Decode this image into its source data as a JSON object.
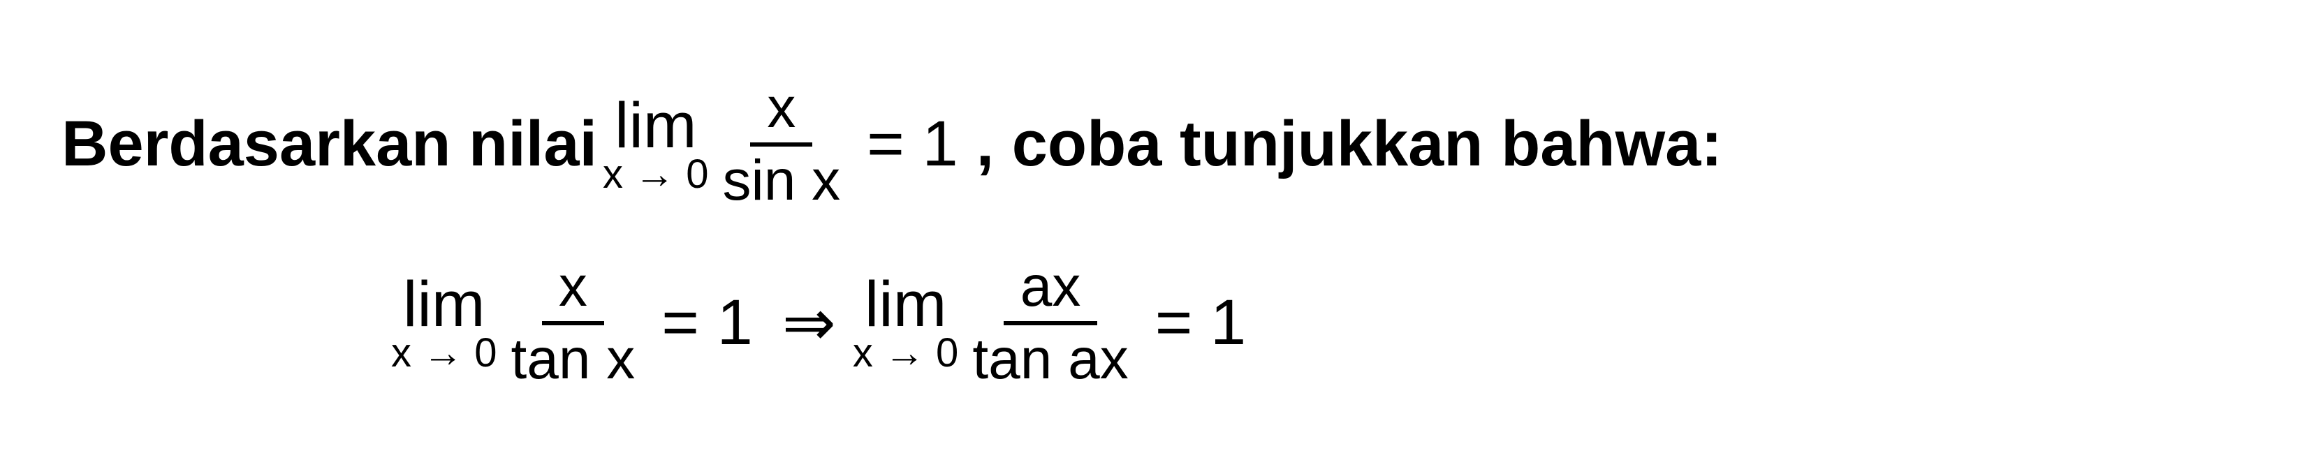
{
  "line1": {
    "text_before": "Berdasarkan nilai",
    "limit": {
      "top": "lim",
      "bottom": "x → 0"
    },
    "fraction": {
      "numerator": "x",
      "denominator": "sin x"
    },
    "equals": "= 1",
    "text_after": ", coba tunjukkan bahwa:"
  },
  "line2": {
    "limit1": {
      "top": "lim",
      "bottom": "x → 0"
    },
    "fraction1": {
      "numerator": "x",
      "denominator": "tan x"
    },
    "equals1": "= 1",
    "arrow": "⇒",
    "limit2": {
      "top": "lim",
      "bottom": "x → 0"
    },
    "fraction2": {
      "numerator": "ax",
      "denominator": "tan ax"
    },
    "equals2": "= 1"
  },
  "styling": {
    "background_color": "#ffffff",
    "text_color": "#000000",
    "main_fontsize": 92,
    "subscript_fontsize": 58,
    "fraction_fontsize": 82,
    "fraction_bar_thickness": 6,
    "font_family": "Arial",
    "font_weight_text": "bold",
    "font_weight_math": "normal"
  }
}
